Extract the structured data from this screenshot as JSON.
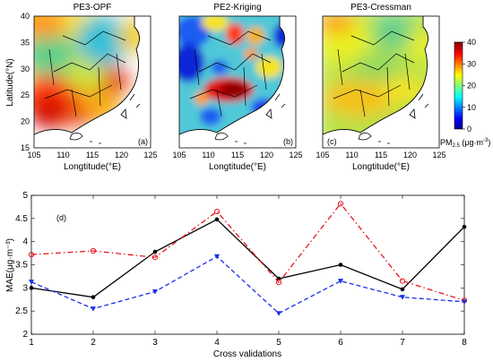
{
  "maps": {
    "panels": [
      {
        "title": "PE3-OPF",
        "tag": "(a)"
      },
      {
        "title": "PE2-Kriging",
        "tag": "(b)"
      },
      {
        "title": "PE3-Cressman",
        "tag": "(c)"
      }
    ],
    "y_axis_label": "Latitude(°N)",
    "x_axis_label": "Longtitude(°E)",
    "lat_ticks": [
      "40",
      "35",
      "30",
      "25",
      "20",
      "15"
    ],
    "lon_ticks": [
      "105",
      "110",
      "115",
      "120",
      "125"
    ],
    "colorbar": {
      "ticks": [
        "40",
        "30",
        "20",
        "10",
        "0"
      ],
      "label_main": "PM",
      "label_sub": "2.5",
      "label_units_prefix": " (μg·m",
      "label_units_sup": "-3",
      "label_units_suffix": ")",
      "colormap": "jet"
    }
  },
  "chart_data": {
    "type": "line",
    "tag": "(d)",
    "xlabel": "Cross validations",
    "ylabel": "MAE(μg·m⁻³)",
    "x": [
      1,
      2,
      3,
      4,
      5,
      6,
      7,
      8
    ],
    "xticks": [
      "1",
      "2",
      "3",
      "4",
      "5",
      "6",
      "7",
      "8"
    ],
    "yticks": [
      "2",
      "2.5",
      "3",
      "3.5",
      "4",
      "4.5",
      "5"
    ],
    "xlim": [
      1,
      8
    ],
    "ylim": [
      2,
      5
    ],
    "grid": false,
    "series": [
      {
        "values": [
          3.0,
          2.8,
          3.78,
          4.48,
          3.2,
          3.5,
          2.97,
          4.32
        ],
        "color": "#000000",
        "marker": "dot",
        "linestyle": "solid"
      },
      {
        "values": [
          3.72,
          3.8,
          3.66,
          4.65,
          3.12,
          4.82,
          3.15,
          2.73
        ],
        "color": "#e8141c",
        "marker": "circle",
        "linestyle": "dashdot"
      },
      {
        "values": [
          3.13,
          2.55,
          2.92,
          3.68,
          2.45,
          3.15,
          2.8,
          2.7
        ],
        "color": "#1a2ee8",
        "marker": "triangle-down",
        "linestyle": "dashed"
      }
    ]
  }
}
